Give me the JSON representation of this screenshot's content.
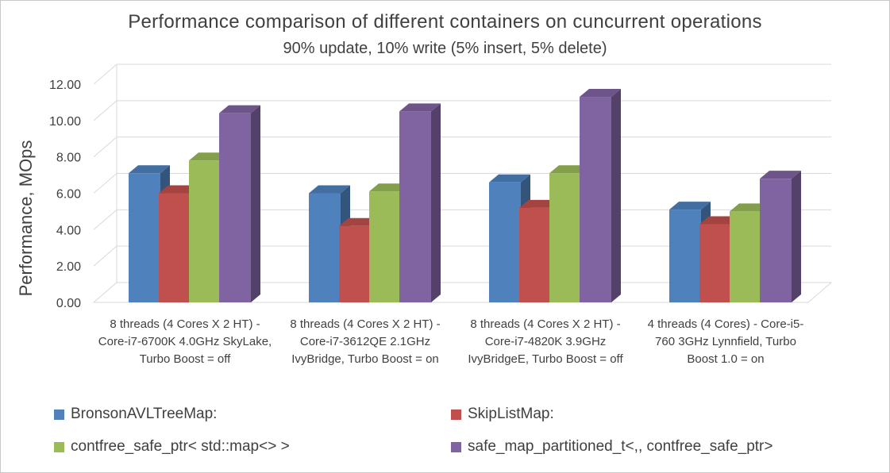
{
  "chart_data": {
    "type": "bar",
    "title": "Performance comparison of different containers on cuncurrent operations",
    "subtitle": "90% update, 10% write (5% insert, 5% delete)",
    "ylabel": "Performance, MOps",
    "xlabel": "",
    "ylim": [
      0,
      12
    ],
    "yticks": [
      "0.00",
      "2.00",
      "4.00",
      "6.00",
      "8.00",
      "10.00",
      "12.00"
    ],
    "grid": true,
    "style": "3d-column",
    "legend_position": "bottom",
    "categories": [
      "8 threads (4 Cores X 2 HT) - Core-i7-6700K 4.0GHz SkyLake, Turbo Boost = off",
      "8 threads (4 Cores X 2 HT) - Core-i7-3612QE 2.1GHz IvyBridge, Turbo Boost = on",
      "8 threads (4 Cores X 2 HT) - Core-i7-4820K 3.9GHz IvyBridgeE, Turbo Boost = off",
      "4 threads (4 Cores) - Core-i5-760 3GHz Lynnfield, Turbo Boost 1.0 = on"
    ],
    "series": [
      {
        "name": "BronsonAVLTreeMap:",
        "color": "#4f81bd",
        "values": [
          7.1,
          6.0,
          6.6,
          5.1
        ]
      },
      {
        "name": "SkipListMap:",
        "color": "#c0504d",
        "values": [
          6.0,
          4.2,
          5.2,
          4.3
        ]
      },
      {
        "name": "contfree_safe_ptr< std::map<> >",
        "color": "#9bbb59",
        "values": [
          7.8,
          6.1,
          7.1,
          5.0
        ]
      },
      {
        "name": "safe_map_partitioned_t<,, contfree_safe_ptr>",
        "color": "#8064a2",
        "values": [
          10.4,
          10.5,
          11.3,
          6.8
        ]
      }
    ]
  }
}
